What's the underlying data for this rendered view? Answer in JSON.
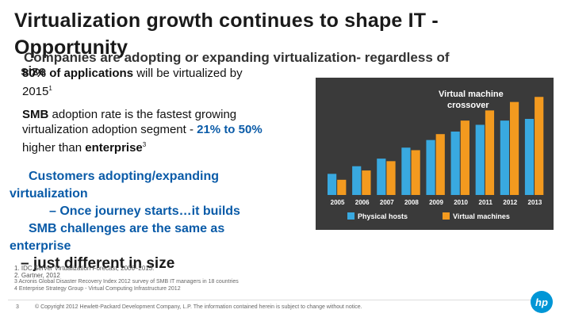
{
  "slide": {
    "title_line1": "Virtualization growth continues to shape IT -",
    "title_line2": "Opportunity",
    "subtitle_line1": "Companies are adopting or expanding virtualization- regardless of",
    "subtitle_line2": "size",
    "bullet1_bold": "80% of applications",
    "bullet1_rest": " will be virtualized by",
    "bullet1_line2": "2015",
    "bullet1_sup": "1",
    "bullet2_bold1": "SMB",
    "bullet2_text1": " adoption rate is the fastest growing virtualization adoption segment  -  ",
    "bullet2_blue": "21% to 50%",
    "bullet2_text2": " higher than ",
    "bullet2_bold2": "enterprise",
    "bullet2_sup": "3",
    "bullet3_line1": "Customers adopting/expanding",
    "bullet3_line2": "virtualization",
    "bullet3_line3": "– Once journey starts…it builds",
    "bullet4_line1": "SMB challenges are the same as",
    "bullet4_line2": "enterprise",
    "bullet4_line3": "– just different in size",
    "footnote1": "1. IDC Server Virtualization Forecast, 2006–2013.",
    "footnote2": "2. Gartner, 2012",
    "footnote3": "3 Acronis Global Disaster Recovery Index 2012 survey of SMB IT managers in 18 countries",
    "footnote4": "4 Enterprise Strategy Group - Virtual Computing Infrastructure 2012",
    "page_number": "3",
    "copyright": "© Copyright 2012 Hewlett-Packard Development Company, L.P.  The information contained herein is subject to change without notice."
  },
  "chart_data": {
    "type": "bar",
    "title": "Virtual machine crossover",
    "categories": [
      "2005",
      "2006",
      "2007",
      "2008",
      "2009",
      "2010",
      "2011",
      "2012",
      "2013"
    ],
    "series": [
      {
        "name": "Physical hosts",
        "color": "#39a9e0",
        "values": [
          2.5,
          3.4,
          4.3,
          5.6,
          6.5,
          7.5,
          8.3,
          8.8,
          9.0
        ]
      },
      {
        "name": "Virtual machines",
        "color": "#f39a1f",
        "values": [
          1.8,
          2.9,
          4.0,
          5.3,
          7.2,
          8.8,
          10.0,
          11.0,
          11.6
        ]
      }
    ],
    "ylim": [
      0,
      12
    ],
    "legend": "bottom"
  },
  "colors": {
    "chart_bg": "#3a3a3a",
    "blue": "#0a5ba8",
    "hp_blue": "#0096d6"
  }
}
